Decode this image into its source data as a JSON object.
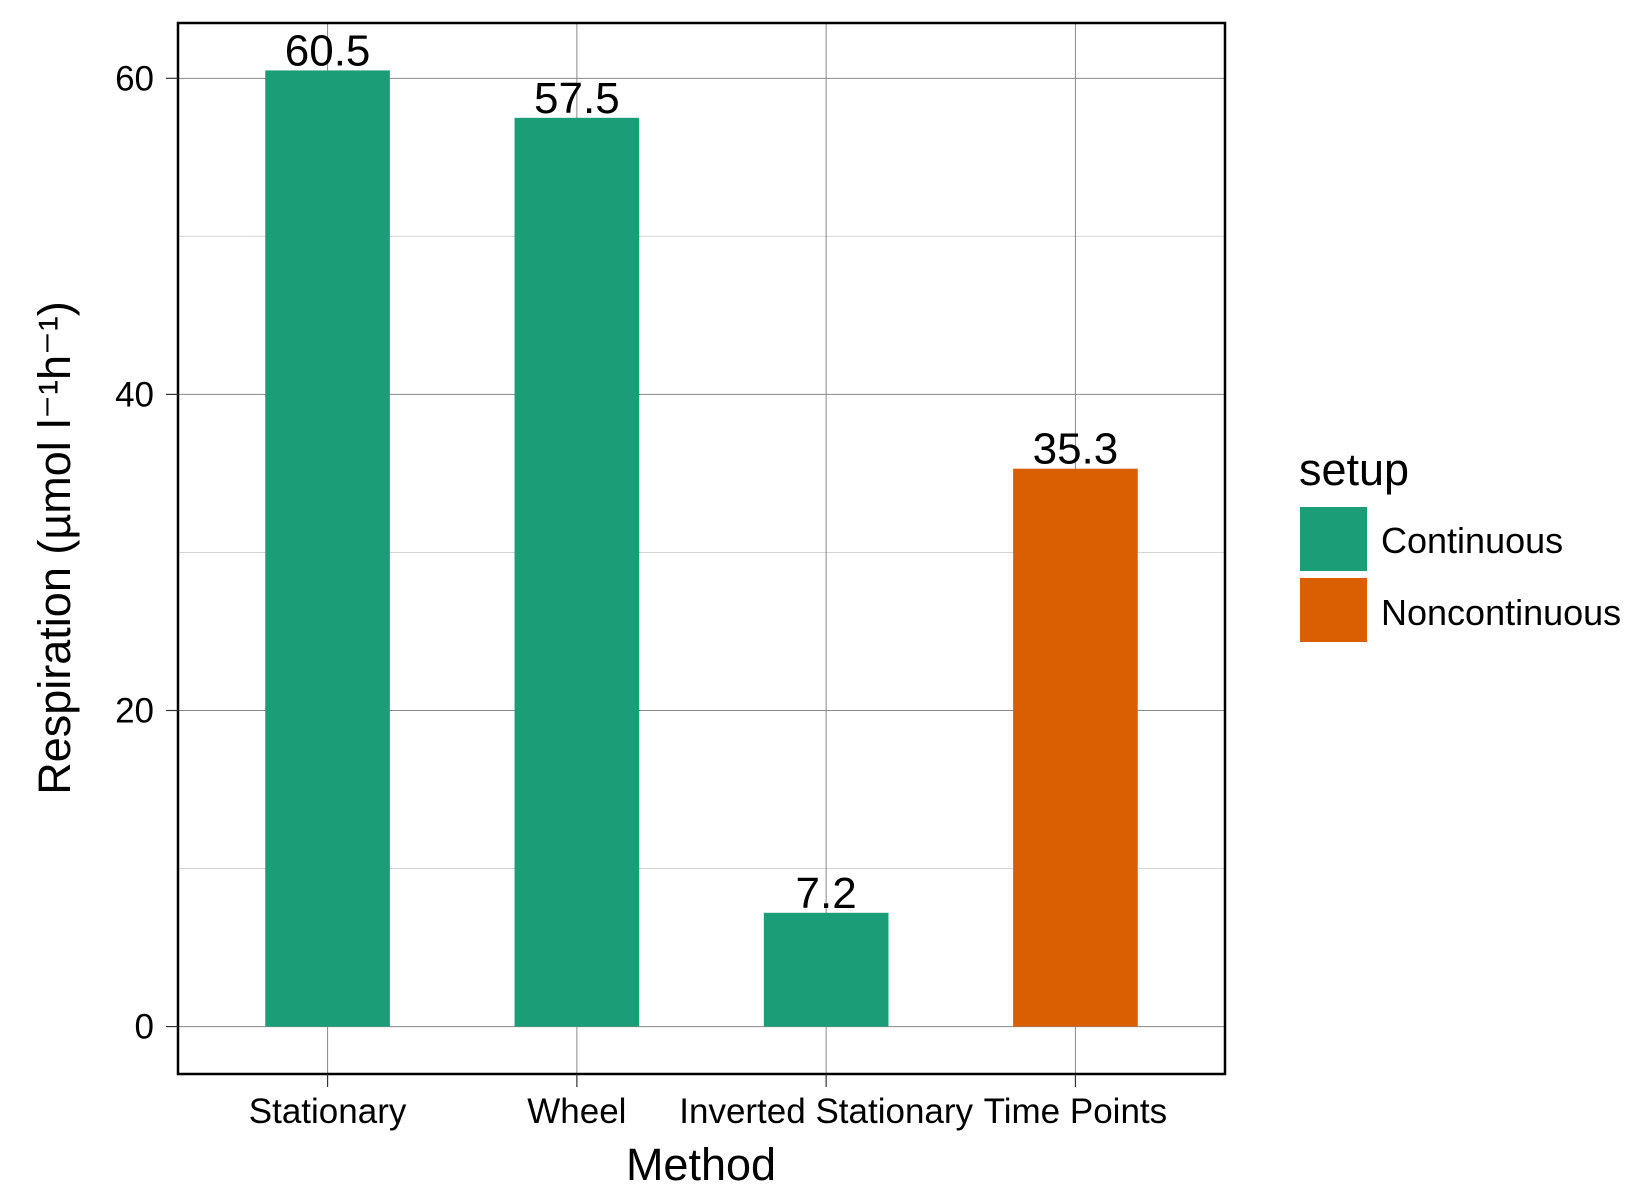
{
  "chart_data": {
    "type": "bar",
    "categories": [
      "Stationary",
      "Wheel",
      "Inverted Stationary",
      "Time Points"
    ],
    "values": [
      60.5,
      57.5,
      7.2,
      35.3
    ],
    "data_labels": [
      "60.5",
      "57.5",
      "7.2",
      "35.3"
    ],
    "fill_group": [
      "Continuous",
      "Continuous",
      "Continuous",
      "Noncontinuous"
    ],
    "title": "",
    "xlabel": "Method",
    "ylabel": "Respiration (µmol l⁻¹h⁻¹)",
    "ylim": [
      -3,
      63.5
    ],
    "yticks": [
      0,
      20,
      40,
      60
    ],
    "yticklabels": [
      "0",
      "20",
      "40",
      "60"
    ],
    "grid": true,
    "legend": {
      "title": "setup",
      "position": "right",
      "entries": [
        {
          "label": "Continuous",
          "color": "#1b9e77"
        },
        {
          "label": "Noncontinuous",
          "color": "#d95f02"
        }
      ]
    },
    "colors": {
      "major_grid": "#8a8a8a",
      "minor_grid": "#d4d4d4",
      "panel_border": "#000000"
    }
  }
}
